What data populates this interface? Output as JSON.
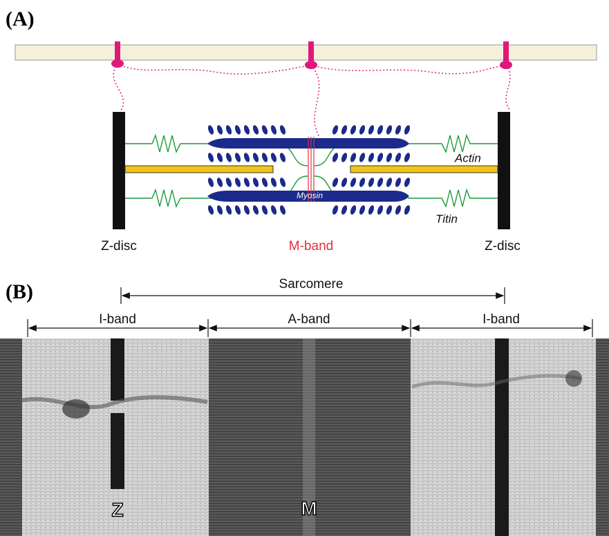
{
  "panel_a": {
    "label": "(A)",
    "z_disc_left": "Z-disc",
    "m_band": "M-band",
    "z_disc_right": "Z-disc",
    "actin": "Actin",
    "titin": "Titin",
    "myosin": "Myosin"
  },
  "panel_b": {
    "label": "(B)",
    "sarcomere": "Sarcomere",
    "bands": [
      "I-band",
      "A-band",
      "I-band"
    ],
    "z_marker": "Z",
    "m_marker": "M"
  }
}
